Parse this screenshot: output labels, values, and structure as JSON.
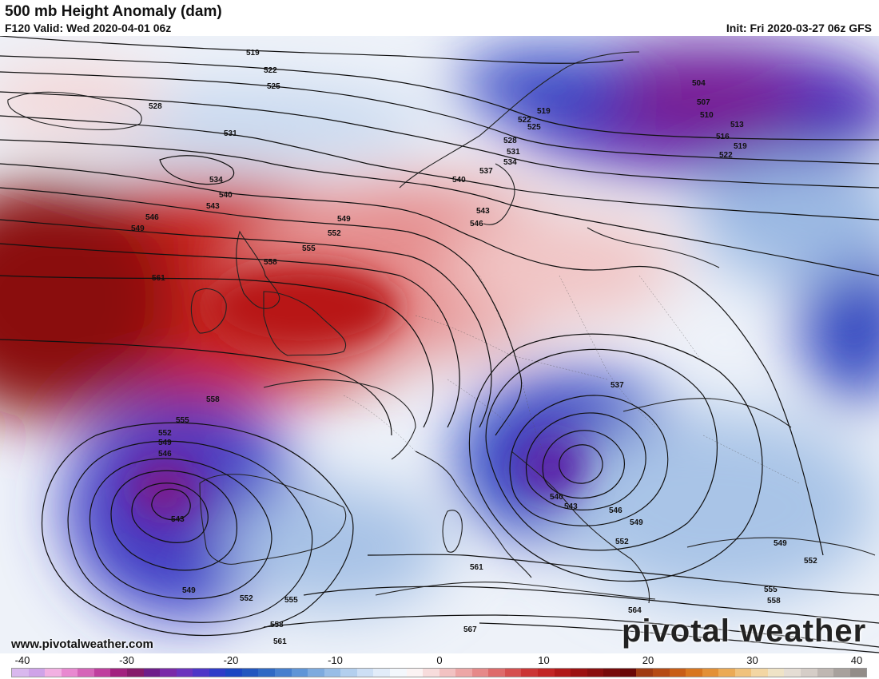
{
  "header": {
    "title": "500 mb Height Anomaly (dam)",
    "valid": "F120 Valid: Wed 2020-04-01 06z",
    "init": "Init: Fri 2020-03-27 06z GFS"
  },
  "website": "www.pivotalweather.com",
  "brand": {
    "text": "pivotal weather",
    "icon": "sun-gear-icon"
  },
  "contour_labels": [
    "504",
    "507",
    "510",
    "513",
    "516",
    "519",
    "522",
    "525",
    "528",
    "531",
    "534",
    "537",
    "540",
    "543",
    "546",
    "549",
    "552",
    "555",
    "558",
    "561",
    "564",
    "567"
  ],
  "legend": {
    "ticks": [
      "-40",
      "-30",
      "-20",
      "-10",
      "0",
      "10",
      "20",
      "30",
      "40"
    ],
    "colors": [
      "#d9b8ee",
      "#cfa3e8",
      "#f2b0e2",
      "#e889d0",
      "#d565b8",
      "#bf3f9e",
      "#a2217f",
      "#861a6a",
      "#6e1e8a",
      "#7a2aa8",
      "#6b33bd",
      "#4e36c7",
      "#2f3cc8",
      "#1c46c2",
      "#2256bf",
      "#2f69c4",
      "#467fce",
      "#5f95d7",
      "#7daade",
      "#98bde6",
      "#b3cfee",
      "#cddff5",
      "#e2ecf9",
      "#f3f7fc",
      "#fbf3f3",
      "#f7dcdc",
      "#f2c2c2",
      "#eda6a6",
      "#e68989",
      "#de6b6b",
      "#d54f4f",
      "#cb3535",
      "#c22424",
      "#b01818",
      "#9c1212",
      "#8a0f0f",
      "#770b0b",
      "#6a0707",
      "#a03a12",
      "#b54a14",
      "#c85d16",
      "#d8761f",
      "#e39036",
      "#ebaa55",
      "#f0c27c",
      "#f3d6a3",
      "#efe3c6",
      "#e5ddd4",
      "#d5cdc7",
      "#bfb7b2",
      "#a8a19d",
      "#928c88"
    ]
  }
}
